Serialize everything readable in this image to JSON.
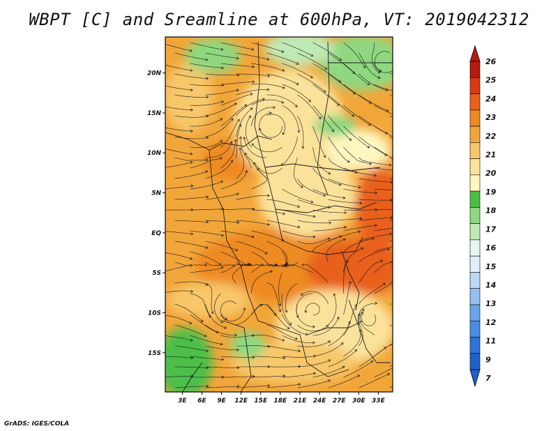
{
  "title": "WBPT [C] and Sreamline at 600hPa, VT: 2019042312",
  "footer": "GrADS: IGES/COLA",
  "colors": {
    "c15": "#e8f7f0",
    "c16": "#bfe9b5",
    "c17": "#8fd880",
    "c18": "#4cbf48",
    "c19": "#fff6c0",
    "c20": "#fbe29a",
    "c21": "#f7c76b",
    "c22": "#f2a63a",
    "c23": "#ee8a22",
    "c24": "#e8611c",
    "c25": "#d83a14",
    "c26": "#b51a10",
    "cool": [
      "#1f60c8",
      "#2f74d8",
      "#4b8ce3",
      "#6aa5ea",
      "#93c0f1",
      "#bcd9f6",
      "#dff0fb"
    ]
  },
  "map": {
    "lat_labels": [
      "20N",
      "15N",
      "10N",
      "5N",
      "EQ",
      "5S",
      "10S",
      "15S"
    ],
    "lat_values": [
      20,
      15,
      10,
      5,
      0,
      -5,
      -10,
      -15
    ],
    "lon_labels": [
      "3E",
      "6E",
      "9E",
      "12E",
      "15E",
      "18E",
      "21E",
      "24E",
      "27E",
      "30E",
      "33E"
    ],
    "lon_values": [
      3,
      6,
      9,
      12,
      15,
      18,
      21,
      24,
      27,
      30,
      33
    ],
    "lon_range": [
      0.4,
      35.2
    ],
    "lat_range": [
      -19.9,
      24.5
    ]
  },
  "colorbar": {
    "labels": [
      "26",
      "25",
      "24",
      "23",
      "22",
      "21",
      "20",
      "19",
      "18",
      "17",
      "16",
      "15",
      "14",
      "13",
      "12",
      "11",
      "9",
      "7"
    ]
  }
}
